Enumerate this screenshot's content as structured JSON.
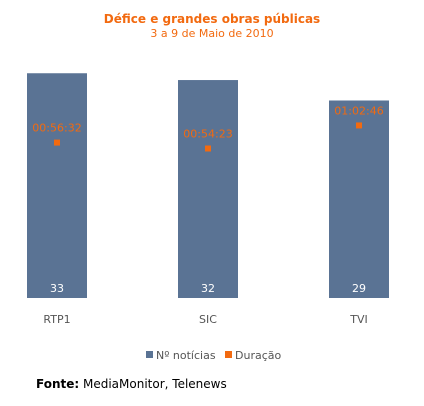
{
  "chart_data": {
    "type": "bar",
    "title": "Défice e grandes obras públicas",
    "subtitle": "3 a 9 de Maio de 2010",
    "categories": [
      "RTP1",
      "SIC",
      "TVI"
    ],
    "series": [
      {
        "name": "Nº notícias",
        "values": [
          33,
          32,
          29
        ],
        "labels": [
          "33",
          "32",
          "29"
        ]
      },
      {
        "name": "Duração",
        "values_seconds": [
          3392,
          3263,
          3766
        ],
        "labels": [
          "00:56:32",
          "00:54:23",
          "01:02:46"
        ]
      }
    ],
    "ylim_count": [
      0,
      37
    ],
    "ylim_duration_seconds": [
      0,
      5500
    ],
    "legend_position": "bottom",
    "grid": false
  },
  "source": {
    "label": "Fonte:",
    "text": " MediaMonitor, Telenews"
  },
  "colors": {
    "bar": "#5a7394",
    "marker": "#f26a10",
    "title": "#f26a10",
    "axis_text": "#555555"
  }
}
